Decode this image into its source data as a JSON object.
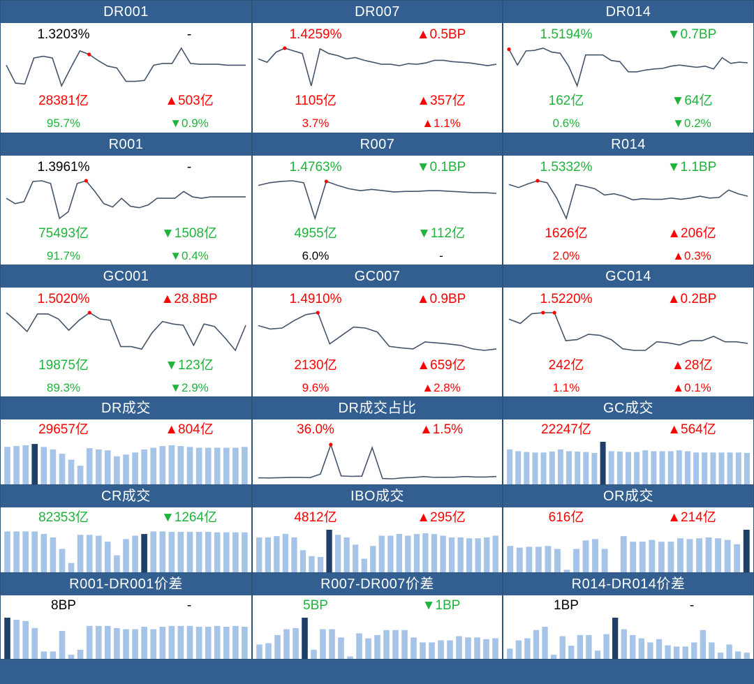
{
  "colors": {
    "up": "#ff0000",
    "down": "#1fb33c",
    "flat": "#000000",
    "line": "#44546a",
    "bar": "#a6c4e8",
    "bar_hi": "#1f3f66",
    "header": "#335f90"
  },
  "cells": [
    {
      "title": "DR001",
      "rate": "1.3203%",
      "rate_color": "black",
      "rate_chg": "-",
      "rate_chg_color": "black",
      "vol": "28381亿",
      "vol_color": "red",
      "vol_chg": "▲503亿",
      "vol_chg_color": "red",
      "pct": "95.7%",
      "pct_color": "green",
      "pct_chg": "▼0.9%",
      "pct_chg_color": "green",
      "spark": [
        1.308,
        1.288,
        1.287,
        1.316,
        1.318,
        1.316,
        1.285,
        1.305,
        1.324,
        1.32,
        1.313,
        1.307,
        1.305,
        1.29,
        1.29,
        1.291,
        1.308,
        1.31,
        1.31,
        1.327,
        1.31,
        1.309,
        1.309,
        1.309,
        1.308,
        1.308,
        1.308
      ],
      "spark_hi": 9
    },
    {
      "title": "DR007",
      "rate": "1.4259%",
      "rate_color": "red",
      "rate_chg": "▲0.5BP",
      "rate_chg_color": "red",
      "vol": "1105亿",
      "vol_color": "red",
      "vol_chg": "▲357亿",
      "vol_chg_color": "red",
      "pct": "3.7%",
      "pct_color": "red",
      "pct_chg": "▲1.1%",
      "pct_chg_color": "red",
      "spark": [
        1.41,
        1.405,
        1.42,
        1.426,
        1.422,
        1.418,
        1.37,
        1.425,
        1.418,
        1.415,
        1.41,
        1.412,
        1.408,
        1.405,
        1.402,
        1.402,
        1.4,
        1.403,
        1.402,
        1.404,
        1.408,
        1.408,
        1.406,
        1.405,
        1.404,
        1.402,
        1.4,
        1.402
      ],
      "spark_hi": 3
    },
    {
      "title": "DR014",
      "rate": "1.5194%",
      "rate_color": "green",
      "rate_chg": "▼0.7BP",
      "rate_chg_color": "green",
      "vol": "162亿",
      "vol_color": "green",
      "vol_chg": "▼64亿",
      "vol_chg_color": "green",
      "pct": "0.6%",
      "pct_color": "green",
      "pct_chg": "▼0.2%",
      "pct_chg_color": "green",
      "spark": [
        1.52,
        1.492,
        1.517,
        1.518,
        1.522,
        1.515,
        1.513,
        1.49,
        1.455,
        1.51,
        1.51,
        1.51,
        1.5,
        1.498,
        1.48,
        1.48,
        1.483,
        1.485,
        1.486,
        1.49,
        1.492,
        1.49,
        1.488,
        1.49,
        1.485,
        1.505,
        1.495,
        1.497,
        1.496
      ],
      "spark_hi": 0
    },
    {
      "title": "R001",
      "rate": "1.3961%",
      "rate_color": "black",
      "rate_chg": "-",
      "rate_chg_color": "black",
      "vol": "75493亿",
      "vol_color": "green",
      "vol_chg": "▼1508亿",
      "vol_chg_color": "green",
      "pct": "91.7%",
      "pct_color": "green",
      "pct_chg": "▼0.4%",
      "pct_chg_color": "green",
      "spark": [
        1.37,
        1.362,
        1.365,
        1.395,
        1.396,
        1.392,
        1.34,
        1.35,
        1.392,
        1.396,
        1.38,
        1.362,
        1.357,
        1.37,
        1.358,
        1.356,
        1.36,
        1.37,
        1.37,
        1.37,
        1.38,
        1.372,
        1.37,
        1.372,
        1.372,
        1.372,
        1.372,
        1.372
      ],
      "spark_hi": 9
    },
    {
      "title": "R007",
      "rate": "1.4763%",
      "rate_color": "green",
      "rate_chg": "▼0.1BP",
      "rate_chg_color": "green",
      "vol": "4955亿",
      "vol_color": "green",
      "vol_chg": "▼112亿",
      "vol_chg_color": "green",
      "pct": "6.0%",
      "pct_color": "black",
      "pct_chg": "-",
      "pct_chg_color": "black",
      "spark": [
        1.47,
        1.474,
        1.476,
        1.477,
        1.474,
        1.42,
        1.476,
        1.47,
        1.465,
        1.462,
        1.464,
        1.462,
        1.46,
        1.461,
        1.461,
        1.462,
        1.462,
        1.461,
        1.46,
        1.459,
        1.459,
        1.458
      ],
      "spark_hi": 6
    },
    {
      "title": "R014",
      "rate": "1.5332%",
      "rate_color": "green",
      "rate_chg": "▼1.1BP",
      "rate_chg_color": "green",
      "vol": "1626亿",
      "vol_color": "red",
      "vol_chg": "▲206亿",
      "vol_chg_color": "red",
      "pct": "2.0%",
      "pct_color": "red",
      "pct_chg": "▲0.3%",
      "pct_chg_color": "red",
      "spark": [
        1.527,
        1.522,
        1.528,
        1.533,
        1.53,
        1.505,
        1.472,
        1.527,
        1.524,
        1.52,
        1.51,
        1.512,
        1.508,
        1.502,
        1.504,
        1.503,
        1.503,
        1.505,
        1.503,
        1.505,
        1.508,
        1.505,
        1.506,
        1.518,
        1.512,
        1.508
      ],
      "spark_hi": 3
    },
    {
      "title": "GC001",
      "rate": "1.5020%",
      "rate_color": "red",
      "rate_chg": "▲28.8BP",
      "rate_chg_color": "red",
      "vol": "19875亿",
      "vol_color": "green",
      "vol_chg": "▼123亿",
      "vol_chg_color": "green",
      "pct": "89.3%",
      "pct_color": "green",
      "pct_chg": "▼2.9%",
      "pct_chg_color": "green",
      "spark": [
        1.5,
        1.43,
        1.35,
        1.49,
        1.49,
        1.45,
        1.36,
        1.44,
        1.5,
        1.45,
        1.44,
        1.23,
        1.23,
        1.21,
        1.34,
        1.43,
        1.41,
        1.4,
        1.24,
        1.41,
        1.39,
        1.3,
        1.2,
        1.4
      ],
      "spark_hi": 8
    },
    {
      "title": "GC007",
      "rate": "1.4910%",
      "rate_color": "red",
      "rate_chg": "▲0.9BP",
      "rate_chg_color": "red",
      "vol": "2130亿",
      "vol_color": "red",
      "vol_chg": "▲659亿",
      "vol_chg_color": "red",
      "pct": "9.6%",
      "pct_color": "red",
      "pct_chg": "▲2.8%",
      "pct_chg_color": "red",
      "spark": [
        1.465,
        1.458,
        1.46,
        1.475,
        1.487,
        1.491,
        1.428,
        1.445,
        1.462,
        1.46,
        1.452,
        1.423,
        1.42,
        1.418,
        1.432,
        1.43,
        1.428,
        1.425,
        1.418,
        1.415,
        1.418
      ],
      "spark_hi": 5
    },
    {
      "title": "GC014",
      "rate": "1.5220%",
      "rate_color": "red",
      "rate_chg": "▲0.2BP",
      "rate_chg_color": "red",
      "vol": "242亿",
      "vol_color": "red",
      "vol_chg": "▲28亿",
      "vol_chg_color": "red",
      "pct": "1.1%",
      "pct_color": "red",
      "pct_chg": "▲0.1%",
      "pct_chg_color": "red",
      "spark": [
        1.51,
        1.502,
        1.52,
        1.522,
        1.522,
        1.47,
        1.472,
        1.482,
        1.48,
        1.472,
        1.455,
        1.452,
        1.452,
        1.468,
        1.466,
        1.462,
        1.47,
        1.47,
        1.478,
        1.468,
        1.468,
        1.465
      ],
      "spark_hi": [
        3,
        4
      ]
    },
    {
      "title": "DR成交",
      "rate": "29657亿",
      "rate_color": "red",
      "rate_chg": "▲804亿",
      "rate_chg_color": "red",
      "bars": [
        88,
        90,
        92,
        95,
        88,
        82,
        72,
        58,
        44,
        85,
        82,
        80,
        66,
        70,
        75,
        82,
        86,
        90,
        92,
        90,
        88,
        86,
        86,
        86,
        86,
        86,
        88
      ],
      "bar_hi": 3,
      "bar_scale": 100
    },
    {
      "title": "DR成交占比",
      "rate": "36.0%",
      "rate_color": "red",
      "rate_chg": "▲1.5%",
      "rate_chg_color": "red",
      "spark": [
        3.2,
        3,
        3.3,
        3.5,
        3.6,
        3.4,
        6.8,
        36,
        5,
        4.6,
        4.8,
        33,
        2.5,
        2.2,
        3.2,
        3.5,
        4.4,
        3.6,
        3.7,
        3.8,
        4.5,
        4,
        4,
        4.5
      ],
      "spark_hi": 7
    },
    {
      "title": "GC成交",
      "rate": "22247亿",
      "rate_color": "red",
      "rate_chg": "▲564亿",
      "rate_chg_color": "red",
      "bars": [
        82,
        78,
        76,
        75,
        75,
        77,
        82,
        78,
        77,
        76,
        74,
        100,
        78,
        77,
        76,
        76,
        80,
        78,
        78,
        78,
        80,
        78,
        75,
        75,
        75,
        75,
        75,
        75,
        74
      ],
      "bar_hi": 11,
      "bar_scale": 100
    },
    {
      "title": "CR成交",
      "rate": "82353亿",
      "rate_color": "green",
      "rate_chg": "▼1264亿",
      "rate_chg_color": "green",
      "bars": [
        96,
        96,
        96,
        96,
        90,
        82,
        55,
        22,
        88,
        88,
        86,
        72,
        40,
        78,
        86,
        90,
        96,
        96,
        95,
        95,
        95,
        95,
        95,
        94,
        94,
        94,
        94
      ],
      "bar_hi": 15,
      "bar_scale": 100
    },
    {
      "title": "IBO成交",
      "rate": "4812亿",
      "rate_color": "red",
      "rate_chg": "▲295亿",
      "rate_chg_color": "red",
      "bars": [
        82,
        82,
        85,
        90,
        82,
        52,
        38,
        36,
        100,
        88,
        82,
        65,
        32,
        62,
        86,
        86,
        90,
        86,
        90,
        92,
        90,
        86,
        82,
        82,
        80,
        80,
        82,
        86
      ],
      "bar_hi": 8,
      "bar_scale": 100
    },
    {
      "title": "OR成交",
      "rate": "616亿",
      "rate_color": "red",
      "rate_chg": "▲214亿",
      "rate_chg_color": "red",
      "bars": [
        62,
        58,
        60,
        60,
        62,
        55,
        6,
        55,
        75,
        78,
        55,
        0,
        85,
        72,
        72,
        76,
        72,
        72,
        80,
        78,
        80,
        82,
        80,
        76,
        66,
        100
      ],
      "bar_hi": 25,
      "bar_scale": 100
    },
    {
      "title": "R001-DR001价差",
      "rate": "8BP",
      "rate_color": "black",
      "rate_chg": "-",
      "rate_chg_color": "black",
      "bars": [
        100,
        95,
        92,
        75,
        18,
        18,
        68,
        10,
        22,
        80,
        80,
        80,
        75,
        72,
        72,
        78,
        72,
        78,
        80,
        80,
        80,
        78,
        78,
        80,
        78,
        80,
        78
      ],
      "bar_hi": 0,
      "bar_scale": 100
    },
    {
      "title": "R007-DR007价差",
      "rate": "5BP",
      "rate_color": "green",
      "rate_chg": "▼1BP",
      "rate_chg_color": "green",
      "bars": [
        35,
        38,
        58,
        72,
        75,
        100,
        22,
        72,
        72,
        52,
        6,
        62,
        50,
        58,
        70,
        70,
        70,
        52,
        40,
        40,
        45,
        45,
        55,
        52,
        52,
        48,
        50
      ],
      "bar_hi": 5,
      "bar_scale": 100
    },
    {
      "title": "R014-DR014价差",
      "rate": "1BP",
      "rate_color": "black",
      "rate_chg": "-",
      "rate_chg_color": "black",
      "bars": [
        25,
        45,
        50,
        70,
        78,
        10,
        55,
        32,
        58,
        58,
        20,
        60,
        100,
        72,
        58,
        50,
        40,
        48,
        33,
        30,
        30,
        40,
        70,
        40,
        15,
        35,
        18,
        15
      ],
      "bar_hi": 12,
      "bar_scale": 100
    }
  ]
}
